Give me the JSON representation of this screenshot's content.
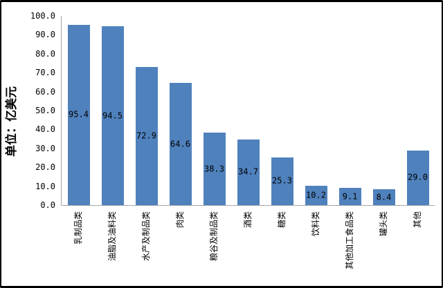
{
  "chart_data": {
    "type": "bar",
    "categories": [
      "乳制品类",
      "油脂及油料类",
      "水产及制品类",
      "肉类",
      "粮谷及制品类",
      "酒类",
      "糖类",
      "饮料类",
      "其他加工食品类",
      "罐头类",
      "其他"
    ],
    "values": [
      95.4,
      94.5,
      72.9,
      64.6,
      38.3,
      34.7,
      25.3,
      10.2,
      9.1,
      8.4,
      29.0
    ],
    "title": "",
    "xlabel": "",
    "ylabel": "单位：亿美元",
    "ylim": [
      0,
      100
    ],
    "ytick_labels": [
      "0.0",
      "10.0",
      "20.0",
      "30.0",
      "40.0",
      "50.0",
      "60.0",
      "70.0",
      "80.0",
      "90.0",
      "100.0"
    ],
    "grid": false,
    "legend": "none",
    "data_labels_position": "center",
    "bar_color": "#4f81bd",
    "axis_color": "#a6a6a6",
    "frame_color": "#000000"
  }
}
